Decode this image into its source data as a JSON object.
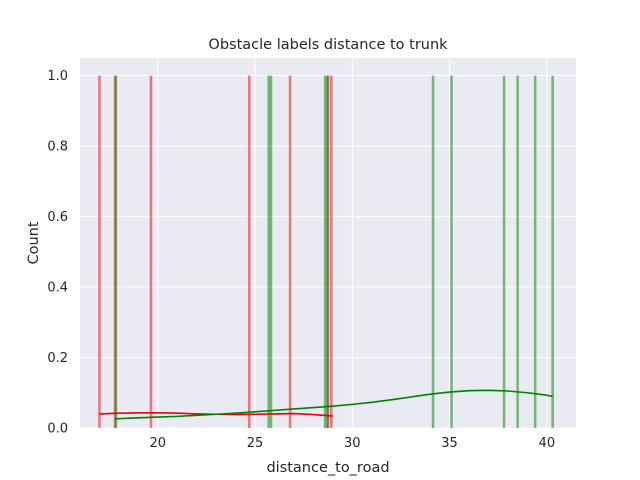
{
  "chart_data": {
    "type": "histogram",
    "title": "Obstacle labels distance to trunk",
    "xlabel": "distance_to_road",
    "ylabel": "Count",
    "xlim": [
      16.0,
      41.5
    ],
    "ylim": [
      0,
      1.05
    ],
    "x_ticks": [
      20,
      25,
      30,
      35,
      40
    ],
    "x_tick_labels": [
      "20",
      "25",
      "30",
      "35",
      "40"
    ],
    "y_ticks": [
      0.0,
      0.2,
      0.4,
      0.6,
      0.8,
      1.0
    ],
    "y_tick_labels": [
      "0.0",
      "0.2",
      "0.4",
      "0.6",
      "0.8",
      "1.0"
    ],
    "grid": true,
    "background": "#eaeaf2",
    "series": [
      {
        "color": "#e8000b",
        "bar_alpha": 0.5,
        "bin_width": 0.13,
        "bars": [
          {
            "x": 17.0,
            "count": 1
          },
          {
            "x": 17.8,
            "count": 1
          },
          {
            "x": 19.65,
            "count": 1
          },
          {
            "x": 24.7,
            "count": 1
          },
          {
            "x": 26.8,
            "count": 1
          },
          {
            "x": 28.75,
            "count": 1
          },
          {
            "x": 28.92,
            "count": 1
          }
        ],
        "kde": {
          "x": [
            17.0,
            18.0,
            19.0,
            20.0,
            21.0,
            22.0,
            23.0,
            24.0,
            25.0,
            26.0,
            27.0,
            28.0,
            29.0
          ],
          "y": [
            0.04,
            0.042,
            0.043,
            0.043,
            0.042,
            0.04,
            0.039,
            0.038,
            0.039,
            0.04,
            0.041,
            0.038,
            0.034
          ]
        }
      },
      {
        "color": "#008000",
        "bar_alpha": 0.5,
        "bin_width": 0.13,
        "bars": [
          {
            "x": 17.85,
            "count": 1
          },
          {
            "x": 25.7,
            "count": 1
          },
          {
            "x": 25.82,
            "count": 1
          },
          {
            "x": 28.6,
            "count": 1
          },
          {
            "x": 28.72,
            "count": 1
          },
          {
            "x": 34.15,
            "count": 1
          },
          {
            "x": 35.1,
            "count": 1
          },
          {
            "x": 37.8,
            "count": 1
          },
          {
            "x": 38.5,
            "count": 1
          },
          {
            "x": 39.4,
            "count": 1
          },
          {
            "x": 40.3,
            "count": 1
          }
        ],
        "kde": {
          "x": [
            17.8,
            19.0,
            20.0,
            21.0,
            22.0,
            23.0,
            24.0,
            25.0,
            26.0,
            27.0,
            28.0,
            29.0,
            30.0,
            31.0,
            32.0,
            33.0,
            34.0,
            35.0,
            36.0,
            37.0,
            38.0,
            39.0,
            40.0,
            40.3
          ],
          "y": [
            0.026,
            0.029,
            0.031,
            0.033,
            0.036,
            0.039,
            0.042,
            0.046,
            0.05,
            0.054,
            0.058,
            0.062,
            0.067,
            0.073,
            0.08,
            0.088,
            0.096,
            0.102,
            0.106,
            0.107,
            0.105,
            0.1,
            0.093,
            0.09
          ]
        }
      }
    ]
  }
}
